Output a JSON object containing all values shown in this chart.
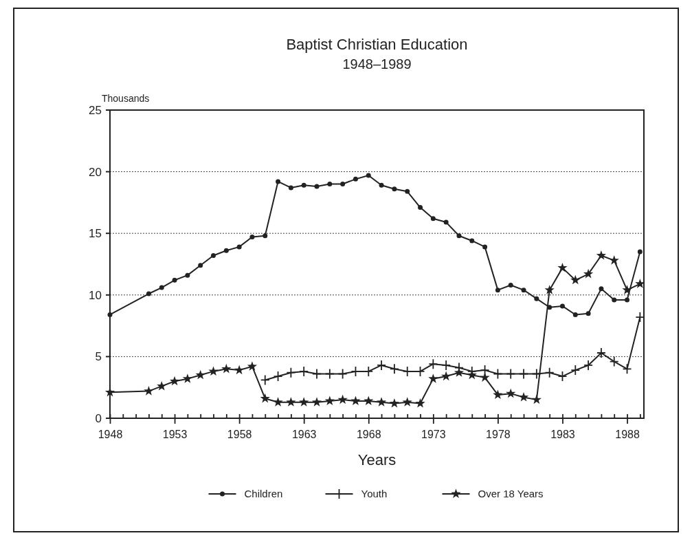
{
  "chart_data": {
    "type": "line",
    "title": "Baptist Christian Education",
    "subtitle": "1948–1989",
    "xlabel": "Years",
    "ylabel": "Thousands",
    "xlim": [
      1948,
      1989.3
    ],
    "xticks": [
      1948,
      {
        "value": 1949,
        "label": null
      },
      {
        "value": 1950,
        "label": null
      },
      {
        "value": 1951,
        "label": null
      },
      {
        "value": 1952,
        "label": null
      },
      1953,
      {
        "value": 1954,
        "label": null
      },
      {
        "value": 1955,
        "label": null
      },
      {
        "value": 1956,
        "label": null
      },
      {
        "value": 1957,
        "label": null
      },
      1958,
      {
        "value": 1959,
        "label": null
      },
      {
        "value": 1960,
        "label": null
      },
      {
        "value": 1961,
        "label": null
      },
      {
        "value": 1962,
        "label": null
      },
      1963,
      {
        "value": 1964,
        "label": null
      },
      {
        "value": 1965,
        "label": null
      },
      {
        "value": 1966,
        "label": null
      },
      {
        "value": 1967,
        "label": null
      },
      1968,
      {
        "value": 1969,
        "label": null
      },
      {
        "value": 1970,
        "label": null
      },
      {
        "value": 1971,
        "label": null
      },
      {
        "value": 1972,
        "label": null
      },
      1973,
      {
        "value": 1974,
        "label": null
      },
      {
        "value": 1975,
        "label": null
      },
      {
        "value": 1976,
        "label": null
      },
      {
        "value": 1977,
        "label": null
      },
      1978,
      {
        "value": 1979,
        "label": null
      },
      {
        "value": 1980,
        "label": null
      },
      {
        "value": 1981,
        "label": null
      },
      {
        "value": 1982,
        "label": null
      },
      1983,
      {
        "value": 1984,
        "label": null
      },
      {
        "value": 1985,
        "label": null
      },
      {
        "value": 1986,
        "label": null
      },
      {
        "value": 1987,
        "label": null
      },
      1988,
      {
        "value": 1989,
        "label": null
      }
    ],
    "ylim": [
      0,
      25
    ],
    "yticks": [
      0,
      5,
      10,
      15,
      20,
      25
    ],
    "grid": "y",
    "legend": "bottom",
    "line_style": "solid",
    "series": [
      {
        "name": "Children",
        "color": "#222222",
        "marker": "circle",
        "x": [
          1948,
          1951,
          1952,
          1953,
          1954,
          1955,
          1956,
          1957,
          1958,
          1959,
          1960,
          1961,
          1962,
          1963,
          1964,
          1965,
          1966,
          1967,
          1968,
          1969,
          1970,
          1971,
          1972,
          1973,
          1974,
          1975,
          1976,
          1977,
          1978,
          1979,
          1980,
          1981,
          1982,
          1983,
          1984,
          1985,
          1986,
          1987,
          1988,
          1989
        ],
        "values": [
          8.4,
          10.1,
          10.6,
          11.2,
          11.6,
          12.4,
          13.2,
          13.6,
          13.9,
          14.7,
          14.8,
          19.2,
          18.7,
          18.9,
          18.8,
          19.0,
          19.0,
          19.4,
          19.7,
          18.9,
          18.6,
          18.4,
          17.1,
          16.2,
          15.9,
          14.8,
          14.4,
          13.9,
          10.4,
          10.8,
          10.4,
          9.7,
          9.0,
          9.1,
          8.4,
          8.5,
          10.5,
          9.6,
          9.6,
          13.5
        ]
      },
      {
        "name": "Youth",
        "color": "#222222",
        "marker": "cross",
        "x": [
          1960,
          1961,
          1962,
          1963,
          1964,
          1965,
          1966,
          1967,
          1968,
          1969,
          1970,
          1971,
          1972,
          1973,
          1974,
          1975,
          1976,
          1977,
          1978,
          1979,
          1980,
          1981,
          1982,
          1983,
          1984,
          1985,
          1986,
          1987,
          1988,
          1989
        ],
        "values": [
          3.1,
          3.4,
          3.7,
          3.8,
          3.6,
          3.6,
          3.6,
          3.8,
          3.8,
          4.3,
          4.0,
          3.8,
          3.8,
          4.4,
          4.3,
          4.1,
          3.8,
          3.9,
          3.6,
          3.6,
          3.6,
          3.6,
          3.7,
          3.4,
          3.9,
          4.3,
          5.3,
          4.6,
          4.0,
          8.2
        ]
      },
      {
        "name": "Over 18 Years",
        "color": "#222222",
        "marker": "star",
        "x": [
          1948,
          1951,
          1952,
          1953,
          1954,
          1955,
          1956,
          1957,
          1958,
          1959,
          1960,
          1961,
          1962,
          1963,
          1964,
          1965,
          1966,
          1967,
          1968,
          1969,
          1970,
          1971,
          1972,
          1973,
          1974,
          1975,
          1976,
          1977,
          1978,
          1979,
          1980,
          1981,
          1982,
          1983,
          1984,
          1985,
          1986,
          1987,
          1988,
          1989
        ],
        "values": [
          2.1,
          2.2,
          2.6,
          3.0,
          3.2,
          3.5,
          3.8,
          4.0,
          3.9,
          4.2,
          1.6,
          1.3,
          1.3,
          1.3,
          1.3,
          1.4,
          1.5,
          1.4,
          1.4,
          1.3,
          1.2,
          1.3,
          1.2,
          3.2,
          3.4,
          3.7,
          3.5,
          3.3,
          1.9,
          2.0,
          1.7,
          1.5,
          10.4,
          12.2,
          11.2,
          11.7,
          13.2,
          12.8,
          10.4,
          10.9
        ]
      }
    ]
  }
}
